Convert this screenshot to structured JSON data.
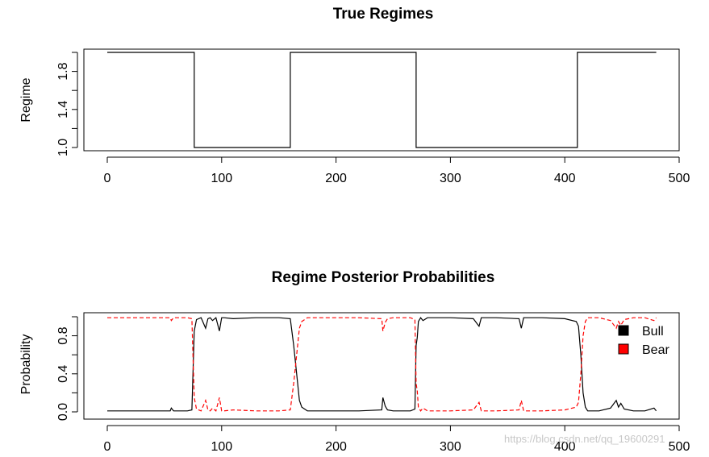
{
  "watermark": "https://blog.csdn.net/qq_19600291",
  "chart_data": [
    {
      "type": "line",
      "title": "True Regimes",
      "xlabel": "",
      "ylabel": "Regime",
      "xlim": [
        0,
        500
      ],
      "ylim": [
        1.0,
        2.0
      ],
      "xticks": [
        "0",
        "100",
        "200",
        "300",
        "400",
        "500"
      ],
      "yticks": [
        "1.0",
        "1.4",
        "1.8"
      ],
      "grid": false,
      "series": [
        {
          "style": "step",
          "color": "#000000",
          "x": [
            0,
            76,
            76,
            160,
            160,
            270,
            270,
            411,
            411,
            480
          ],
          "y": [
            2,
            2,
            1,
            1,
            2,
            2,
            1,
            1,
            2,
            2
          ]
        }
      ]
    },
    {
      "type": "line",
      "title": "Regime Posterior Probabilities",
      "xlabel": "",
      "ylabel": "Probability",
      "xlim": [
        0,
        500
      ],
      "ylim": [
        0.0,
        1.0
      ],
      "xticks": [
        "0",
        "100",
        "200",
        "300",
        "400",
        "500"
      ],
      "yticks": [
        "0.0",
        "0.4",
        "0.8"
      ],
      "grid": false,
      "legend_position": "top-right",
      "series": [
        {
          "name": "Bull",
          "color": "#000000",
          "dash": "solid",
          "x": [
            0,
            20,
            40,
            55,
            56,
            58,
            70,
            74,
            76,
            78,
            82,
            86,
            88,
            90,
            92,
            95,
            98,
            100,
            102,
            110,
            130,
            150,
            160,
            163,
            166,
            168,
            170,
            175,
            190,
            220,
            240,
            241,
            243,
            245,
            250,
            265,
            269,
            270,
            271,
            272,
            274,
            276,
            280,
            300,
            320,
            325,
            327,
            340,
            360,
            362,
            364,
            380,
            400,
            410,
            412,
            414,
            416,
            418,
            420,
            430,
            440,
            445,
            447,
            449,
            452,
            460,
            470,
            478,
            480
          ],
          "y": [
            0.01,
            0.01,
            0.01,
            0.01,
            0.04,
            0.01,
            0.01,
            0.02,
            0.85,
            0.97,
            0.99,
            0.88,
            0.98,
            0.99,
            0.96,
            0.99,
            0.85,
            0.99,
            0.99,
            0.98,
            0.99,
            0.99,
            0.98,
            0.7,
            0.35,
            0.12,
            0.05,
            0.01,
            0.01,
            0.01,
            0.02,
            0.15,
            0.06,
            0.02,
            0.01,
            0.01,
            0.03,
            0.7,
            0.78,
            0.95,
            0.99,
            0.96,
            0.99,
            0.99,
            0.98,
            0.9,
            0.99,
            0.99,
            0.98,
            0.88,
            0.99,
            0.99,
            0.98,
            0.95,
            0.9,
            0.6,
            0.2,
            0.05,
            0.01,
            0.01,
            0.04,
            0.12,
            0.05,
            0.09,
            0.03,
            0.01,
            0.01,
            0.04,
            0.01
          ]
        },
        {
          "name": "Bear",
          "color": "#ff0000",
          "dash": "dashed",
          "x": [
            0,
            20,
            40,
            55,
            56,
            58,
            70,
            74,
            76,
            78,
            82,
            86,
            88,
            90,
            92,
            95,
            98,
            100,
            102,
            110,
            130,
            150,
            160,
            163,
            166,
            168,
            170,
            175,
            190,
            220,
            240,
            241,
            243,
            245,
            250,
            265,
            269,
            270,
            271,
            272,
            274,
            276,
            280,
            300,
            320,
            325,
            327,
            340,
            360,
            362,
            364,
            380,
            400,
            410,
            412,
            414,
            416,
            418,
            420,
            430,
            440,
            445,
            447,
            449,
            452,
            460,
            470,
            478,
            480
          ],
          "y": [
            0.99,
            0.99,
            0.99,
            0.99,
            0.96,
            0.99,
            0.99,
            0.98,
            0.15,
            0.03,
            0.01,
            0.12,
            0.02,
            0.01,
            0.04,
            0.01,
            0.15,
            0.01,
            0.01,
            0.02,
            0.01,
            0.01,
            0.02,
            0.3,
            0.65,
            0.88,
            0.95,
            0.99,
            0.99,
            0.99,
            0.98,
            0.85,
            0.94,
            0.98,
            0.99,
            0.99,
            0.97,
            0.3,
            0.22,
            0.05,
            0.01,
            0.04,
            0.01,
            0.01,
            0.02,
            0.1,
            0.01,
            0.01,
            0.02,
            0.12,
            0.01,
            0.01,
            0.02,
            0.05,
            0.1,
            0.4,
            0.8,
            0.95,
            0.99,
            0.99,
            0.96,
            0.88,
            0.95,
            0.91,
            0.97,
            0.99,
            0.99,
            0.96,
            0.99
          ]
        }
      ]
    }
  ]
}
